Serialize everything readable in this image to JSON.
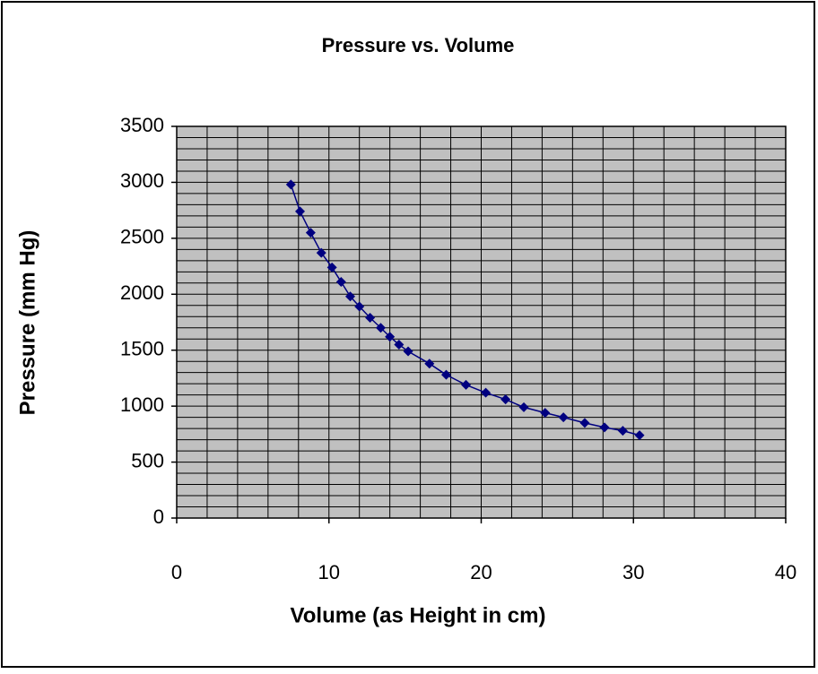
{
  "chart_data": {
    "type": "line",
    "title": "Pressure vs. Volume",
    "x_label": "Volume (as Height in cm)",
    "y_label": "Pressure (mm Hg)",
    "x": [
      7.5,
      8.1,
      8.8,
      9.5,
      10.2,
      10.8,
      11.4,
      12.0,
      12.7,
      13.4,
      14.0,
      14.6,
      15.2,
      16.6,
      17.7,
      19.0,
      20.3,
      21.6,
      22.8,
      24.2,
      25.4,
      26.8,
      28.1,
      29.3,
      30.4
    ],
    "series": [
      {
        "name": "Pressure",
        "color": "#000080",
        "values": [
          2980,
          2740,
          2550,
          2370,
          2240,
          2110,
          1980,
          1890,
          1790,
          1700,
          1620,
          1550,
          1490,
          1380,
          1280,
          1190,
          1120,
          1060,
          990,
          940,
          900,
          850,
          810,
          780,
          740
        ]
      }
    ],
    "xlim": [
      0,
      40
    ],
    "xticks": [
      0,
      10,
      20,
      30,
      40
    ],
    "ylim": [
      0,
      3500
    ],
    "yticks": [
      0,
      500,
      1000,
      1500,
      2000,
      2500,
      3000,
      3500
    ],
    "xgrid": [
      0,
      2,
      4,
      6,
      8,
      10,
      12,
      14,
      16,
      18,
      20,
      22,
      24,
      26,
      28,
      30,
      32,
      34,
      36,
      38,
      40
    ],
    "ygrid": [
      0,
      100,
      200,
      300,
      400,
      500,
      600,
      700,
      800,
      900,
      1000,
      1100,
      1200,
      1300,
      1400,
      1500,
      1600,
      1700,
      1800,
      1900,
      2000,
      2100,
      2200,
      2300,
      2400,
      2500,
      2600,
      2700,
      2800,
      2900,
      3000,
      3100,
      3200,
      3300,
      3400,
      3500
    ],
    "grid": true,
    "plot_background": "#c0c0c0",
    "marker": "diamond"
  }
}
